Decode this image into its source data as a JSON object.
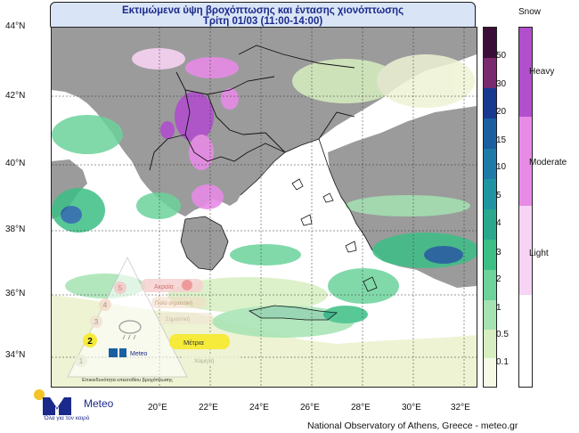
{
  "title": {
    "line1": "Εκτιμώμενα ύψη βροχόπτωσης και έντασης χιονόπτωσης",
    "line2": "Τρίτη 01/03 (11:00-14:00)"
  },
  "lat_labels": [
    "44°N",
    "42°N",
    "40°N",
    "38°N",
    "36°N",
    "34°N"
  ],
  "lon_labels": [
    "20°E",
    "22°E",
    "24°E",
    "26°E",
    "28°E",
    "30°E",
    "32°E"
  ],
  "rain_scale": {
    "labels": [
      "50",
      "30",
      "20",
      "15",
      "10",
      "5",
      "4",
      "3",
      "2",
      "1",
      "0.5",
      "0.1"
    ],
    "colors": [
      "#3a0f37",
      "#7a2a6e",
      "#173a8f",
      "#1b5fa0",
      "#1e7aa8",
      "#1f95a3",
      "#2aa88e",
      "#3cbf86",
      "#6cd39b",
      "#a5e3b3",
      "#d7efc0",
      "#f5f9e6"
    ]
  },
  "snow_scale": {
    "title": "Snow",
    "labels": [
      "Heavy",
      "Moderate",
      "Light"
    ],
    "colors": [
      "#b14fcc",
      "#e78be6",
      "#f7d3f4"
    ]
  },
  "credit": "National Observatory of Athens, Greece - meteo.gr",
  "logo": {
    "name": "Meteo",
    "slogan": "Όλα για τον καιρό"
  },
  "legend_panel": {
    "levels": [
      "5",
      "4",
      "3",
      "2",
      "1"
    ],
    "intensity_labels": [
      "Ακραία",
      "Πολύ σημαντική",
      "Σημαντική",
      "Μέτρια",
      "Χαμηλή"
    ],
    "active_level": "2",
    "active_label": "Μέτρια",
    "logo_name": "Meteo",
    "caption": "Επικινδυνότητα επεισοδίου βροχόπτωσης"
  },
  "colors": {
    "sea": "#ffffff",
    "land": "#9b9b9b",
    "title_bg": "#d9e4f6",
    "title_text": "#1b2a8a",
    "active_yellow": "#f6ea3a"
  }
}
